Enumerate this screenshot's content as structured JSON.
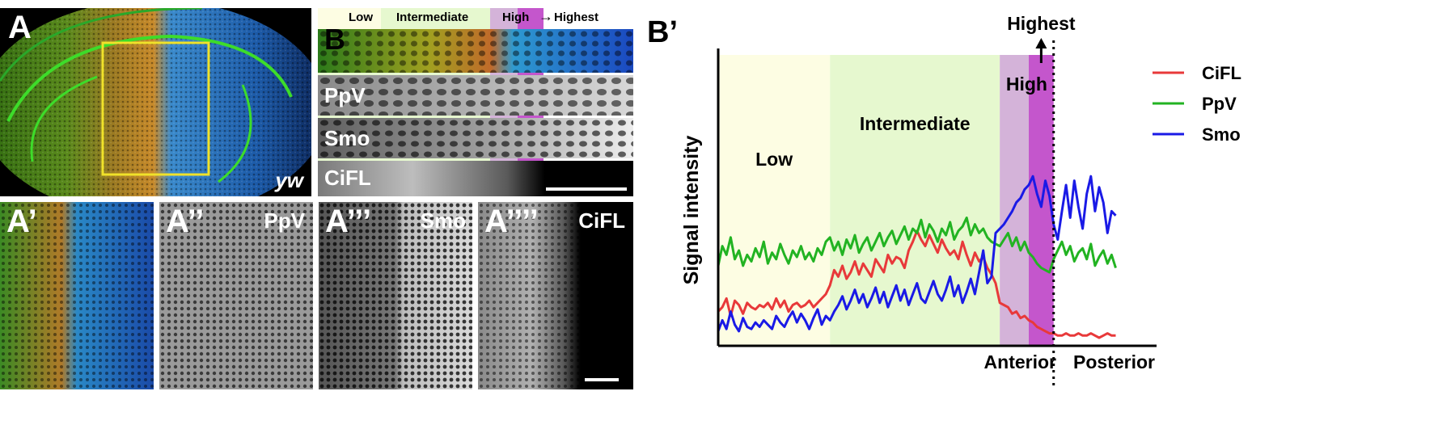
{
  "panel_A": {
    "label": "A",
    "genotype": "yw"
  },
  "panels_A_zoom": [
    {
      "label": "A’",
      "channel": ""
    },
    {
      "label": "A’’",
      "channel": "PpV"
    },
    {
      "label": "A’’’",
      "channel": "Smo"
    },
    {
      "label": "A’’’’",
      "channel": "CiFL"
    }
  ],
  "panel_B": {
    "label": "B",
    "zones": [
      "Low",
      "Intermediate",
      "High",
      "Highest"
    ],
    "channels": [
      "PpV",
      "Smo",
      "CiFL"
    ]
  },
  "colors": {
    "CiFL": "#e8393a",
    "PpV": "#22b322",
    "Smo": "#1a1ae6",
    "low_zone": "#fdfde3",
    "intermediate_zone": "#e6f8cf",
    "high_zone": "#d4b3d9",
    "highest_zone": "#c456cc",
    "box": "#f0e22a"
  },
  "chart_data": {
    "panel_label": "B’",
    "type": "line",
    "ylabel": "Signal intensity",
    "xlabel_left": "Anterior",
    "xlabel_right": "Posterior",
    "x_domain": [
      0,
      100
    ],
    "y_domain": [
      0,
      100
    ],
    "zones": [
      {
        "name": "Low",
        "x0": 0,
        "x1": 27
      },
      {
        "name": "Intermediate",
        "x0": 27,
        "x1": 68
      },
      {
        "name": "High",
        "x0": 68,
        "x1": 75
      },
      {
        "name": "Highest",
        "x0": 75,
        "x1": 81
      }
    ],
    "boundary_x": 81,
    "legend": [
      "CiFL",
      "PpV",
      "Smo"
    ],
    "series": [
      {
        "name": "CiFL",
        "x": [
          0,
          1,
          2,
          3,
          4,
          5,
          6,
          7,
          8,
          9,
          10,
          11,
          12,
          13,
          14,
          15,
          16,
          17,
          18,
          19,
          20,
          21,
          22,
          23,
          24,
          25,
          26,
          27,
          28,
          29,
          30,
          31,
          32,
          33,
          34,
          35,
          36,
          37,
          38,
          39,
          40,
          41,
          42,
          43,
          44,
          45,
          46,
          47,
          48,
          49,
          50,
          51,
          52,
          53,
          54,
          55,
          56,
          57,
          58,
          59,
          60,
          61,
          62,
          63,
          64,
          65,
          66,
          67,
          68,
          69,
          70,
          71,
          72,
          73,
          74,
          75,
          76,
          77,
          78,
          79,
          80,
          81,
          82,
          83,
          84,
          85,
          86,
          87,
          88,
          89,
          90,
          91,
          92,
          93,
          94,
          95,
          96
        ],
        "values": [
          12,
          14,
          18,
          10,
          17,
          15,
          11,
          16,
          14,
          13,
          15,
          14,
          16,
          13,
          18,
          14,
          17,
          12,
          15,
          16,
          14,
          15,
          17,
          14,
          16,
          18,
          20,
          24,
          31,
          28,
          33,
          27,
          30,
          35,
          29,
          34,
          31,
          28,
          36,
          33,
          30,
          38,
          34,
          37,
          36,
          32,
          40,
          44,
          49,
          45,
          42,
          47,
          43,
          39,
          45,
          41,
          38,
          40,
          36,
          44,
          38,
          33,
          39,
          35,
          37,
          32,
          29,
          25,
          16,
          15,
          14,
          11,
          12,
          9,
          10,
          8,
          7,
          5,
          4,
          3,
          2,
          2,
          1,
          1,
          2,
          1,
          1,
          2,
          1,
          1,
          2,
          1,
          0,
          1,
          2,
          1,
          1
        ]
      },
      {
        "name": "PpV",
        "x": [
          0,
          1,
          2,
          3,
          4,
          5,
          6,
          7,
          8,
          9,
          10,
          11,
          12,
          13,
          14,
          15,
          16,
          17,
          18,
          19,
          20,
          21,
          22,
          23,
          24,
          25,
          26,
          27,
          28,
          29,
          30,
          31,
          32,
          33,
          34,
          35,
          36,
          37,
          38,
          39,
          40,
          41,
          42,
          43,
          44,
          45,
          46,
          47,
          48,
          49,
          50,
          51,
          52,
          53,
          54,
          55,
          56,
          57,
          58,
          59,
          60,
          61,
          62,
          63,
          64,
          65,
          66,
          67,
          68,
          69,
          70,
          71,
          72,
          73,
          74,
          75,
          76,
          77,
          78,
          79,
          80,
          81,
          82,
          83,
          84,
          85,
          86,
          87,
          88,
          89,
          90,
          91,
          92,
          93,
          94,
          95,
          96
        ],
        "values": [
          33,
          42,
          38,
          46,
          36,
          40,
          33,
          38,
          35,
          41,
          37,
          44,
          34,
          39,
          36,
          43,
          38,
          34,
          40,
          37,
          42,
          36,
          39,
          35,
          41,
          38,
          44,
          46,
          40,
          44,
          38,
          45,
          41,
          47,
          39,
          43,
          46,
          40,
          44,
          48,
          42,
          46,
          49,
          43,
          47,
          51,
          45,
          50,
          48,
          54,
          46,
          52,
          49,
          44,
          50,
          47,
          53,
          45,
          49,
          51,
          55,
          47,
          52,
          48,
          50,
          46,
          44,
          43,
          42,
          45,
          48,
          42,
          46,
          40,
          44,
          39,
          37,
          34,
          32,
          31,
          30,
          36,
          40,
          44,
          38,
          42,
          35,
          39,
          41,
          36,
          43,
          33,
          37,
          40,
          34,
          38,
          32
        ]
      },
      {
        "name": "Smo",
        "x": [
          0,
          1,
          2,
          3,
          4,
          5,
          6,
          7,
          8,
          9,
          10,
          11,
          12,
          13,
          14,
          15,
          16,
          17,
          18,
          19,
          20,
          21,
          22,
          23,
          24,
          25,
          26,
          27,
          28,
          29,
          30,
          31,
          32,
          33,
          34,
          35,
          36,
          37,
          38,
          39,
          40,
          41,
          42,
          43,
          44,
          45,
          46,
          47,
          48,
          49,
          50,
          51,
          52,
          53,
          54,
          55,
          56,
          57,
          58,
          59,
          60,
          61,
          62,
          63,
          64,
          65,
          66,
          67,
          68,
          69,
          70,
          71,
          72,
          73,
          74,
          75,
          76,
          77,
          78,
          79,
          80,
          81,
          82,
          83,
          84,
          85,
          86,
          87,
          88,
          89,
          90,
          91,
          92,
          93,
          94,
          95,
          96
        ],
        "values": [
          3,
          8,
          4,
          12,
          6,
          3,
          9,
          5,
          4,
          7,
          5,
          8,
          6,
          4,
          10,
          7,
          5,
          9,
          12,
          7,
          11,
          8,
          4,
          9,
          13,
          6,
          10,
          8,
          12,
          15,
          19,
          13,
          17,
          22,
          16,
          20,
          14,
          18,
          23,
          16,
          21,
          14,
          19,
          24,
          17,
          22,
          15,
          20,
          25,
          18,
          16,
          21,
          26,
          20,
          17,
          22,
          28,
          19,
          24,
          16,
          21,
          27,
          20,
          30,
          40,
          25,
          28,
          48,
          50,
          52,
          55,
          58,
          62,
          64,
          68,
          70,
          74,
          66,
          60,
          72,
          65,
          52,
          45,
          58,
          70,
          55,
          72,
          60,
          50,
          66,
          74,
          58,
          69,
          62,
          48,
          58,
          56
        ]
      }
    ]
  }
}
